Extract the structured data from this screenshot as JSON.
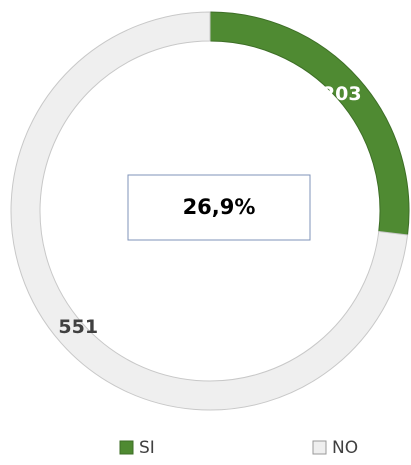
{
  "chart_data": {
    "type": "donut",
    "categories": [
      "SI",
      "NO"
    ],
    "series": [
      {
        "values": [
          203,
          551
        ],
        "colors": [
          "#4f8a32",
          "#efefef"
        ]
      }
    ],
    "annotation": "26,9%",
    "legend": "bottom"
  }
}
